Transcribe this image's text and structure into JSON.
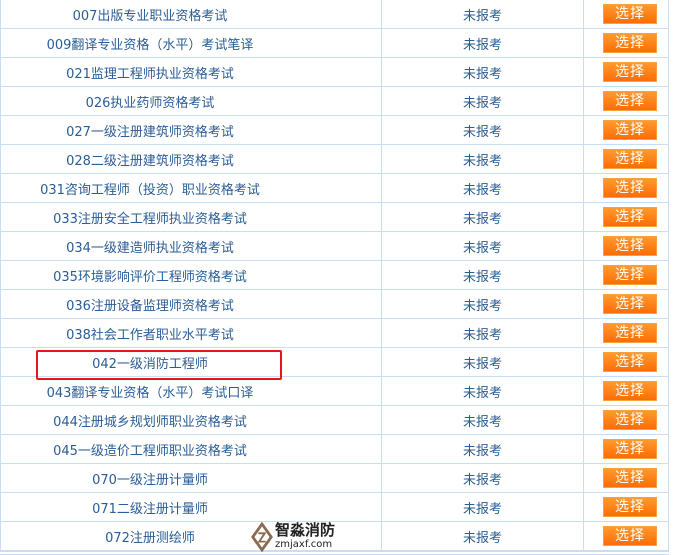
{
  "rows": [
    {
      "name": "007出版专业职业资格考试",
      "status": "未报考",
      "action": "选择"
    },
    {
      "name": "009翻译专业资格（水平）考试笔译",
      "status": "未报考",
      "action": "选择"
    },
    {
      "name": "021监理工程师执业资格考试",
      "status": "未报考",
      "action": "选择"
    },
    {
      "name": "026执业药师资格考试",
      "status": "未报考",
      "action": "选择"
    },
    {
      "name": "027一级注册建筑师资格考试",
      "status": "未报考",
      "action": "选择"
    },
    {
      "name": "028二级注册建筑师资格考试",
      "status": "未报考",
      "action": "选择"
    },
    {
      "name": "031咨询工程师（投资）职业资格考试",
      "status": "未报考",
      "action": "选择"
    },
    {
      "name": "033注册安全工程师执业资格考试",
      "status": "未报考",
      "action": "选择"
    },
    {
      "name": "034一级建造师执业资格考试",
      "status": "未报考",
      "action": "选择"
    },
    {
      "name": "035环境影响评价工程师资格考试",
      "status": "未报考",
      "action": "选择"
    },
    {
      "name": "036注册设备监理师资格考试",
      "status": "未报考",
      "action": "选择"
    },
    {
      "name": "038社会工作者职业水平考试",
      "status": "未报考",
      "action": "选择"
    },
    {
      "name": "042一级消防工程师",
      "status": "未报考",
      "action": "选择"
    },
    {
      "name": "043翻译专业资格（水平）考试口译",
      "status": "未报考",
      "action": "选择"
    },
    {
      "name": "044注册城乡规划师职业资格考试",
      "status": "未报考",
      "action": "选择"
    },
    {
      "name": "045一级造价工程师职业资格考试",
      "status": "未报考",
      "action": "选择"
    },
    {
      "name": "070一级注册计量师",
      "status": "未报考",
      "action": "选择"
    },
    {
      "name": "071二级注册计量师",
      "status": "未报考",
      "action": "选择"
    },
    {
      "name": "072注册测绘师",
      "status": "未报考",
      "action": "选择"
    }
  ],
  "highlighted_row": "042一级消防工程师",
  "watermark": {
    "name": "智淼消防",
    "url": "zmjaxf.com"
  },
  "colors": {
    "text": "#2a5d96",
    "border": "#c9def0",
    "button": "#fb6d05",
    "highlight": "#e8141a"
  }
}
